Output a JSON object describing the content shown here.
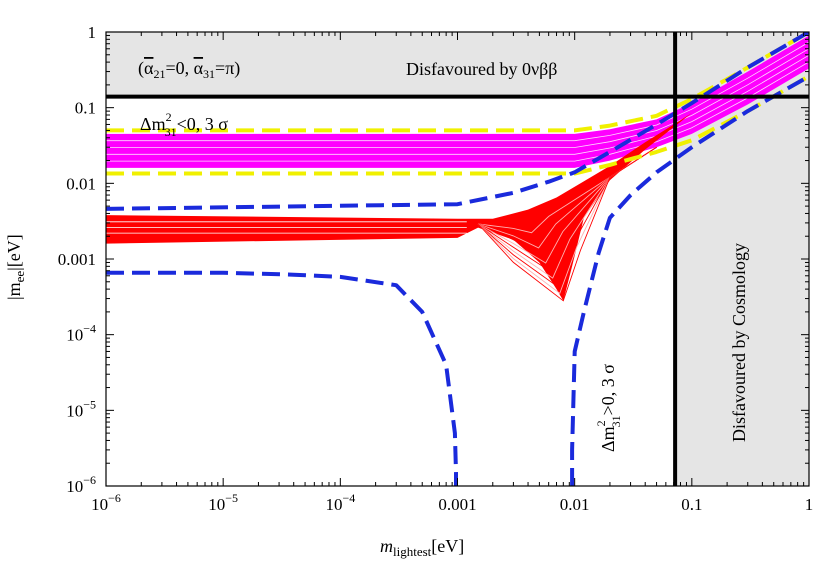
{
  "chart_data": {
    "type": "line",
    "xscale": "log",
    "yscale": "log",
    "xlim": [
      1e-06,
      1
    ],
    "ylim": [
      1e-06,
      1
    ],
    "xlabel": {
      "main": "m",
      "sub": "lightest",
      "unit": "[eV]"
    },
    "ylabel": {
      "main": "|m",
      "sub": "ee",
      "unit": "|[eV]"
    },
    "x_ticks": [
      {
        "value": 1e-06,
        "mant": "10",
        "exp": "−6"
      },
      {
        "value": 1e-05,
        "mant": "10",
        "exp": "−5"
      },
      {
        "value": 0.0001,
        "mant": "10",
        "exp": "−4"
      },
      {
        "value": 0.001,
        "label": "0.001"
      },
      {
        "value": 0.01,
        "label": "0.01"
      },
      {
        "value": 0.1,
        "label": "0.1"
      },
      {
        "value": 1,
        "label": "1"
      }
    ],
    "y_ticks": [
      {
        "value": 1,
        "label": "1"
      },
      {
        "value": 0.1,
        "label": "0.1"
      },
      {
        "value": 0.01,
        "label": "0.01"
      },
      {
        "value": 0.001,
        "label": "0.001"
      },
      {
        "value": 0.0001,
        "mant": "10",
        "exp": "−4"
      },
      {
        "value": 1e-05,
        "mant": "10",
        "exp": "−5"
      },
      {
        "value": 1e-06,
        "mant": "10",
        "exp": "−6"
      }
    ],
    "excluded_regions": [
      {
        "name": "Disfavoured by 0νββ",
        "y_min": 0.14,
        "y_max": 1,
        "color": "#e5e5e5"
      },
      {
        "name": "Disfavoured by Cosmology",
        "x_min": 0.072,
        "x_max": 1,
        "color": "#e5e5e5"
      }
    ],
    "limit_lines": [
      {
        "orientation": "horizontal",
        "value": 0.14,
        "color": "#000000"
      },
      {
        "orientation": "vertical",
        "value": 0.072,
        "color": "#000000"
      }
    ],
    "series": [
      {
        "name": "IH 3σ upper (yellow dashed)",
        "color": "#f0f000",
        "x": [
          1e-06,
          0.01,
          0.02,
          0.05,
          0.1,
          0.3,
          1
        ],
        "y": [
          0.05,
          0.05,
          0.058,
          0.078,
          0.13,
          0.34,
          1.0
        ]
      },
      {
        "name": "IH 3σ lower (yellow dashed)",
        "color": "#f0f000",
        "x": [
          1e-06,
          0.01,
          0.02,
          0.05,
          0.1,
          0.3,
          1
        ],
        "y": [
          0.0135,
          0.0135,
          0.0175,
          0.026,
          0.037,
          0.09,
          0.26
        ]
      },
      {
        "name": "IH band upper (magenta)",
        "color": "#ff00ff",
        "x": [
          1e-06,
          0.01,
          0.02,
          0.05,
          0.1,
          0.3,
          1
        ],
        "y": [
          0.045,
          0.045,
          0.052,
          0.07,
          0.115,
          0.3,
          0.9
        ]
      },
      {
        "name": "IH band lower (magenta)",
        "color": "#ff00ff",
        "x": [
          1e-06,
          0.01,
          0.02,
          0.05,
          0.1,
          0.3,
          1
        ],
        "y": [
          0.016,
          0.016,
          0.02,
          0.03,
          0.045,
          0.11,
          0.33
        ]
      },
      {
        "name": "NH band upper (red)",
        "color": "#ff0000",
        "x": [
          1e-06,
          0.001,
          0.002,
          0.004,
          0.007,
          0.01,
          0.02,
          0.04,
          0.07,
          0.1
        ],
        "y": [
          0.0038,
          0.0034,
          0.0034,
          0.0045,
          0.0065,
          0.009,
          0.017,
          0.035,
          0.06,
          0.085
        ]
      },
      {
        "name": "NH band lower (red)",
        "color": "#ff0000",
        "x": [
          1e-06,
          0.001,
          0.0015,
          0.003,
          0.005,
          0.007,
          0.008,
          0.0095,
          0.012,
          0.02,
          0.04
        ],
        "y": [
          0.0016,
          0.0019,
          0.0026,
          0.0018,
          0.0009,
          0.0004,
          0.00028,
          0.0008,
          0.0035,
          0.011,
          0.028
        ]
      },
      {
        "name": "NH 3σ upper (blue dashed)",
        "color": "#1a2adc",
        "x": [
          1e-06,
          0.001,
          0.003,
          0.006,
          0.01,
          0.02,
          0.05,
          0.1,
          0.3,
          1
        ],
        "y": [
          0.0046,
          0.0053,
          0.0075,
          0.0105,
          0.014,
          0.026,
          0.06,
          0.115,
          0.34,
          1.0
        ]
      },
      {
        "name": "NH 3σ lower (blue dashed)",
        "color": "#1a2adc",
        "x": [
          1e-06,
          1e-05,
          2e-05,
          4e-05,
          0.0001,
          0.0003,
          0.0005,
          0.0008,
          0.00095,
          0.00097,
          0.00097
        ],
        "y": [
          0.00066,
          0.00066,
          0.00064,
          0.00062,
          0.00058,
          0.00045,
          0.0002,
          4e-05,
          5e-06,
          1.5e-06,
          1e-06
        ]
      },
      {
        "name": "NH 3σ lower branch 2 (blue dashed)",
        "color": "#1a2adc",
        "x": [
          0.0095,
          0.0095,
          0.01,
          0.012,
          0.016,
          0.02,
          0.03,
          0.05,
          0.1,
          0.3,
          1
        ],
        "y": [
          1e-06,
          3e-06,
          6e-05,
          0.0002,
          0.0012,
          0.0035,
          0.007,
          0.014,
          0.03,
          0.09,
          0.26
        ]
      }
    ],
    "annotations": {
      "params": "(α̅₂₁=0, α̅₃₁=π)",
      "params_a21": "21",
      "params_a31": "31",
      "params_pi": "π",
      "disfavoured_0vbb": "Disfavoured by 0νββ",
      "disfavoured_cosmology": "Disfavoured by Cosmology",
      "ih_label": "Δm",
      "ih_label_rest": "<0, 3 σ",
      "nh_label": "Δm",
      "nh_label_rest": ">0, 3 σ",
      "sup": "2",
      "sub": "31"
    }
  }
}
